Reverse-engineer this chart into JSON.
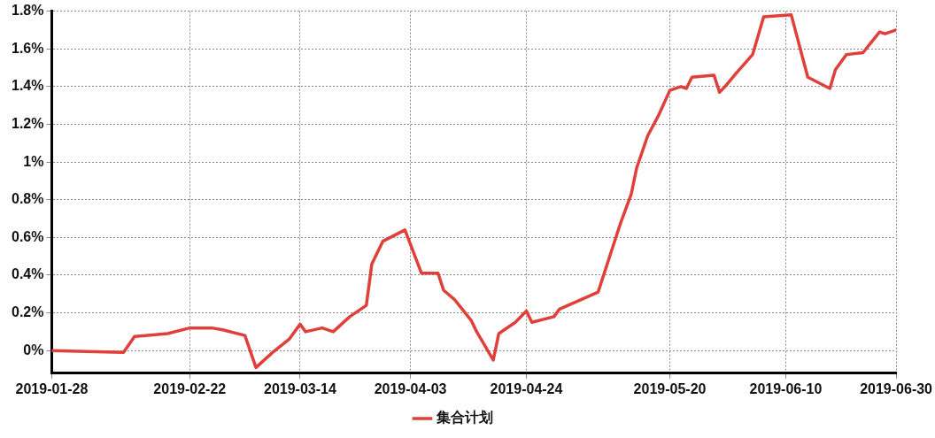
{
  "chart_data": {
    "type": "line",
    "x": [
      "2019-01-28",
      "2019-02-10",
      "2019-02-12",
      "2019-02-14",
      "2019-02-18",
      "2019-02-22",
      "2019-02-26",
      "2019-02-28",
      "2019-03-04",
      "2019-03-06",
      "2019-03-09",
      "2019-03-12",
      "2019-03-14",
      "2019-03-15",
      "2019-03-18",
      "2019-03-20",
      "2019-03-23",
      "2019-03-26",
      "2019-03-27",
      "2019-03-29",
      "2019-04-02",
      "2019-04-05",
      "2019-04-08",
      "2019-04-09",
      "2019-04-11",
      "2019-04-14",
      "2019-04-15",
      "2019-04-18",
      "2019-04-19",
      "2019-04-22",
      "2019-04-24",
      "2019-04-25",
      "2019-04-29",
      "2019-04-30",
      "2019-05-07",
      "2019-05-09",
      "2019-05-11",
      "2019-05-13",
      "2019-05-14",
      "2019-05-16",
      "2019-05-18",
      "2019-05-20",
      "2019-05-22",
      "2019-05-23",
      "2019-05-24",
      "2019-05-28",
      "2019-05-29",
      "2019-05-30",
      "2019-06-01",
      "2019-06-04",
      "2019-06-06",
      "2019-06-11",
      "2019-06-14",
      "2019-06-18",
      "2019-06-19",
      "2019-06-21",
      "2019-06-24",
      "2019-06-27",
      "2019-06-28",
      "2019-06-30"
    ],
    "series": [
      {
        "name": "集合计划",
        "color": "#e0403a",
        "values": [
          0,
          -0.01,
          0.075,
          0.08,
          0.09,
          0.12,
          0.12,
          0.11,
          0.08,
          -0.09,
          -0.01,
          0.06,
          0.14,
          0.1,
          0.12,
          0.1,
          0.18,
          0.24,
          0.46,
          0.58,
          0.64,
          0.41,
          0.41,
          0.32,
          0.27,
          0.16,
          0.1,
          -0.05,
          0.09,
          0.15,
          0.21,
          0.15,
          0.18,
          0.22,
          0.31,
          0.49,
          0.67,
          0.83,
          0.97,
          1.14,
          1.25,
          1.38,
          1.4,
          1.39,
          1.45,
          1.46,
          1.37,
          1.4,
          1.47,
          1.57,
          1.77,
          1.78,
          1.45,
          1.39,
          1.49,
          1.57,
          1.58,
          1.69,
          1.68,
          1.7
        ]
      }
    ],
    "xlim": [
      "2019-01-28",
      "2019-06-30"
    ],
    "xticks": [
      "2019-01-28",
      "2019-02-22",
      "2019-03-14",
      "2019-04-03",
      "2019-04-24",
      "2019-05-20",
      "2019-06-10",
      "2019-06-30"
    ],
    "ylim": [
      -0.12,
      1.8
    ],
    "yticks": [
      {
        "value": 0,
        "label": "0%"
      },
      {
        "value": 0.2,
        "label": "0.2%"
      },
      {
        "value": 0.4,
        "label": "0.4%"
      },
      {
        "value": 0.6,
        "label": "0.6%"
      },
      {
        "value": 0.8,
        "label": "0.8%"
      },
      {
        "value": 1,
        "label": "1%"
      },
      {
        "value": 1.2,
        "label": "1.2%"
      },
      {
        "value": 1.4,
        "label": "1.4%"
      },
      {
        "value": 1.6,
        "label": "1.6%"
      },
      {
        "value": 1.8,
        "label": "1.8%"
      }
    ],
    "grid": true,
    "legend": "bottom",
    "line_style": "solid",
    "marker": "none"
  }
}
